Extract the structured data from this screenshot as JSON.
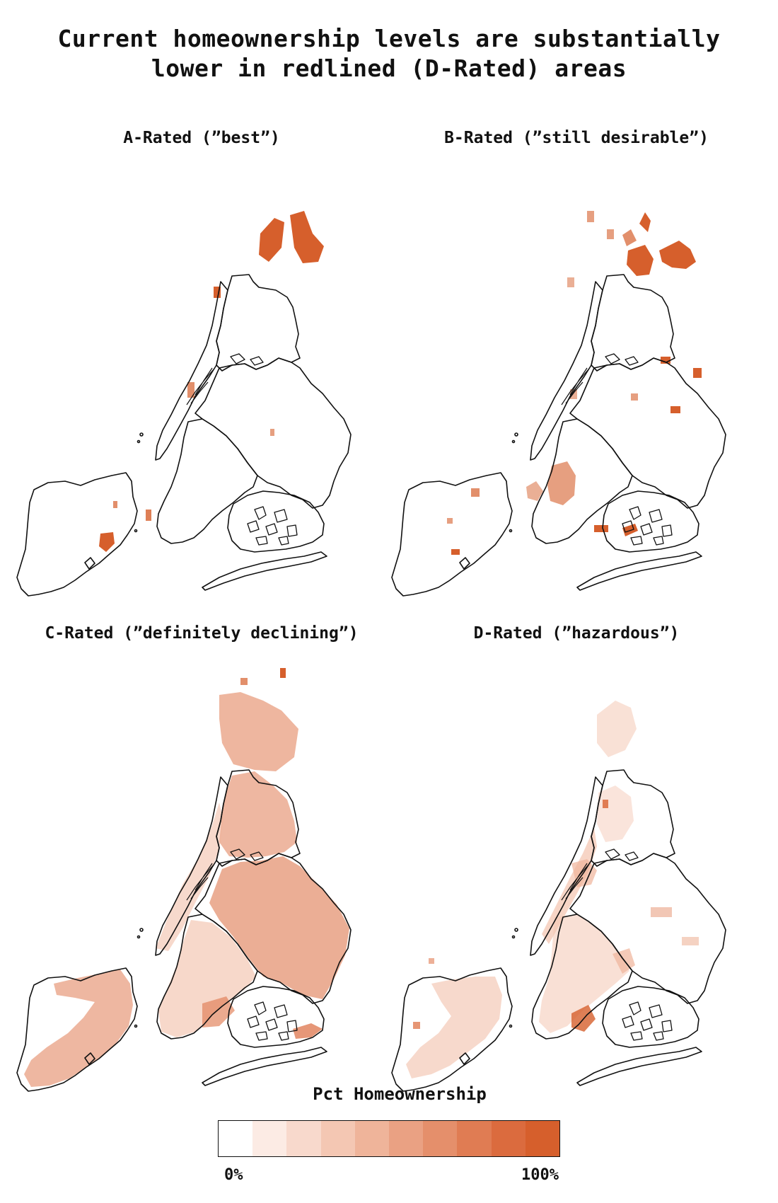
{
  "title": {
    "line1": "Current homeownership levels are substantially",
    "line2": "lower in redlined (D-Rated) areas"
  },
  "panels": [
    {
      "label": "A-Rated (”best”)"
    },
    {
      "label": "B-Rated (”still desirable”)"
    },
    {
      "label": "C-Rated (”definitely declining”)"
    },
    {
      "label": "D-Rated (”hazardous”)"
    }
  ],
  "legend": {
    "title": "Pct Homeownership",
    "min_label": "0%",
    "max_label": "100%",
    "colors": [
      "#ffffff",
      "#fcebe4",
      "#f8d9cc",
      "#f4c7b3",
      "#efb49a",
      "#eaa183",
      "#e58f6b",
      "#e07c53",
      "#db6b3e",
      "#d65f2c"
    ]
  },
  "outline_color": "#111111"
}
